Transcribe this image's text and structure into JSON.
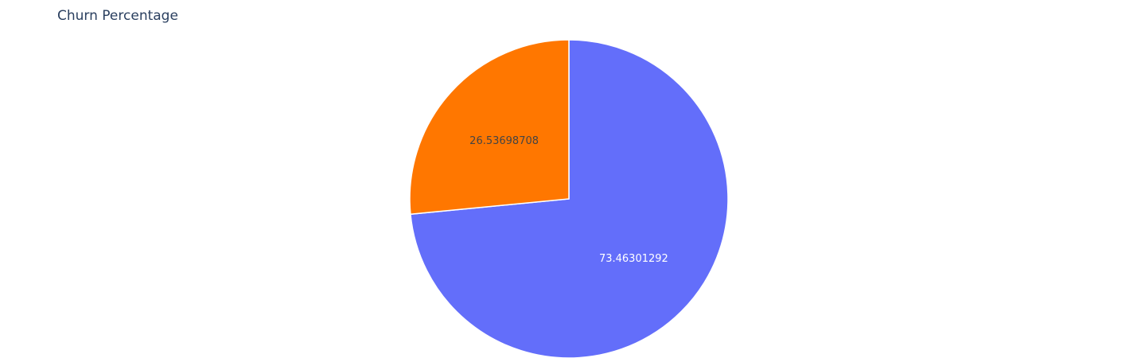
{
  "chart_data": {
    "type": "pie",
    "title": "Churn Percentage",
    "slices": [
      {
        "value": 73.46301292,
        "label": "73.46301292",
        "color": "#636efa",
        "label_color": "#ffffff"
      },
      {
        "value": 26.53698708,
        "label": "26.53698708",
        "color": "#ff7700",
        "label_color": "#444444"
      }
    ],
    "direction": "clockwise",
    "start_angle": "top",
    "legend": "none"
  }
}
